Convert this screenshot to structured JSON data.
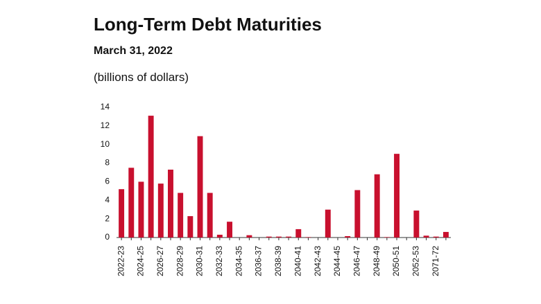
{
  "chart_data": {
    "type": "bar",
    "title": "Long-Term Debt Maturities",
    "subtitle": "March 31, 2022",
    "y_label": "(billions of dollars)",
    "categories": [
      "2022-23",
      null,
      "2024-25",
      null,
      "2026-27",
      null,
      "2028-29",
      null,
      "2030-31",
      null,
      "2032-33",
      null,
      "2034-35",
      null,
      "2036-37",
      null,
      "2038-39",
      null,
      "2040-41",
      null,
      "2042-43",
      null,
      "2044-45",
      null,
      "2046-47",
      null,
      "2048-49",
      null,
      "2050-51",
      null,
      "2052-53",
      null,
      "2071-72",
      null
    ],
    "values": [
      5.2,
      7.5,
      6.0,
      13.1,
      5.8,
      7.3,
      4.8,
      2.3,
      10.9,
      4.8,
      0.3,
      1.7,
      0,
      0.25,
      0,
      0.1,
      0.1,
      0.1,
      0.9,
      0.05,
      0,
      3.0,
      0,
      0.15,
      5.1,
      0,
      6.8,
      0.05,
      9.0,
      0,
      2.9,
      0.2,
      0.1,
      0.6
    ],
    "color": "#c8102e",
    "ylim": [
      0,
      14
    ],
    "yticks": [
      0,
      2,
      4,
      6,
      8,
      10,
      12,
      14
    ]
  }
}
